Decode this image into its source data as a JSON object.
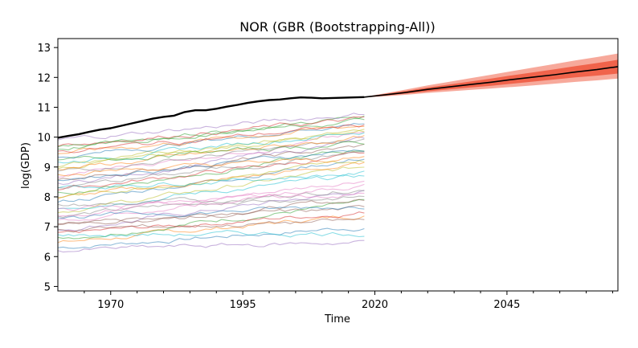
{
  "chart_data": {
    "type": "line",
    "title": "NOR (GBR (Bootstrapping-All))",
    "xlabel": "Time",
    "ylabel": "log(GDP)",
    "xlim": [
      1960,
      2066
    ],
    "ylim": [
      4.85,
      13.3
    ],
    "x_ticks": [
      1970,
      1995,
      2020,
      2045
    ],
    "y_ticks": [
      5,
      6,
      7,
      8,
      9,
      10,
      11,
      12,
      13
    ],
    "grid": false,
    "legend": "none",
    "colors": {
      "highlight": "#000000",
      "forecast_band_outer": "#f7a99b",
      "forecast_band_inner": "#f0634b",
      "forecast_line": "#000000",
      "background_palette": [
        "#1f77b4",
        "#ff7f0e",
        "#2ca02c",
        "#d62728",
        "#9467bd",
        "#8c564b",
        "#e377c2",
        "#7f7f7f",
        "#bcbd22",
        "#17becf"
      ]
    },
    "series": [
      {
        "role": "highlight",
        "x": [
          1960,
          1962,
          1964,
          1966,
          1968,
          1970,
          1972,
          1974,
          1976,
          1978,
          1980,
          1982,
          1984,
          1986,
          1988,
          1990,
          1992,
          1994,
          1996,
          1998,
          2000,
          2002,
          2004,
          2006,
          2008,
          2010,
          2012,
          2014,
          2016,
          2018
        ],
        "values": [
          9.98,
          10.04,
          10.1,
          10.18,
          10.25,
          10.3,
          10.38,
          10.46,
          10.54,
          10.62,
          10.68,
          10.72,
          10.84,
          10.9,
          10.9,
          10.95,
          11.02,
          11.08,
          11.15,
          11.2,
          11.24,
          11.26,
          11.3,
          11.33,
          11.32,
          11.3,
          11.31,
          11.32,
          11.33,
          11.34
        ]
      },
      {
        "role": "forecast_median",
        "x": [
          2018,
          2022,
          2026,
          2030,
          2034,
          2038,
          2042,
          2046,
          2050,
          2054,
          2058,
          2062,
          2066
        ],
        "values": [
          11.34,
          11.42,
          11.5,
          11.6,
          11.68,
          11.76,
          11.84,
          11.93,
          12.01,
          12.09,
          12.18,
          12.26,
          12.36
        ]
      }
    ],
    "forecast_band_outer": {
      "x": [
        2018,
        2022,
        2026,
        2030,
        2034,
        2038,
        2042,
        2046,
        2050,
        2054,
        2058,
        2062,
        2066
      ],
      "lower": [
        11.33,
        11.37,
        11.42,
        11.48,
        11.53,
        11.58,
        11.63,
        11.68,
        11.73,
        11.79,
        11.85,
        11.9,
        11.96
      ],
      "upper": [
        11.35,
        11.47,
        11.6,
        11.73,
        11.85,
        11.97,
        12.09,
        12.21,
        12.33,
        12.45,
        12.57,
        12.68,
        12.8
      ]
    },
    "forecast_band_inner": {
      "x": [
        2018,
        2022,
        2026,
        2030,
        2034,
        2038,
        2042,
        2046,
        2050,
        2054,
        2058,
        2062,
        2066
      ],
      "lower": [
        11.33,
        11.39,
        11.46,
        11.53,
        11.6,
        11.66,
        11.72,
        11.79,
        11.86,
        11.93,
        12.0,
        12.06,
        12.13
      ],
      "upper": [
        11.35,
        11.45,
        11.55,
        11.66,
        11.76,
        11.86,
        11.96,
        12.07,
        12.17,
        12.27,
        12.38,
        12.48,
        12.59
      ]
    },
    "background": {
      "x_start": 1960,
      "x_end": 2018,
      "start_values": [
        6.3,
        6.45,
        6.6,
        6.75,
        6.9,
        7.05,
        7.2,
        7.35,
        7.5,
        7.65,
        7.8,
        7.95,
        8.1,
        8.25,
        8.4,
        8.55,
        8.7,
        8.85,
        9.0,
        9.15,
        9.3,
        9.45,
        9.6,
        9.75,
        9.9,
        7.1,
        7.4,
        7.7,
        8.0,
        8.3,
        8.6,
        8.9,
        9.2,
        9.5,
        6.2,
        6.9,
        7.6,
        8.3,
        9.0,
        6.7,
        7.3,
        8.8,
        9.7
      ],
      "end_values": [
        7.0,
        7.4,
        7.8,
        7.5,
        8.2,
        7.9,
        8.6,
        8.3,
        9.0,
        8.7,
        9.3,
        9.1,
        9.6,
        9.4,
        9.9,
        9.7,
        10.1,
        9.9,
        10.3,
        10.2,
        10.5,
        10.4,
        10.7,
        10.6,
        10.8,
        7.6,
        8.4,
        8.0,
        9.2,
        8.8,
        9.6,
        10.0,
        9.8,
        10.4,
        6.5,
        7.2,
        8.1,
        9.5,
        10.2,
        6.8,
        7.7,
        9.3,
        10.6
      ]
    }
  }
}
